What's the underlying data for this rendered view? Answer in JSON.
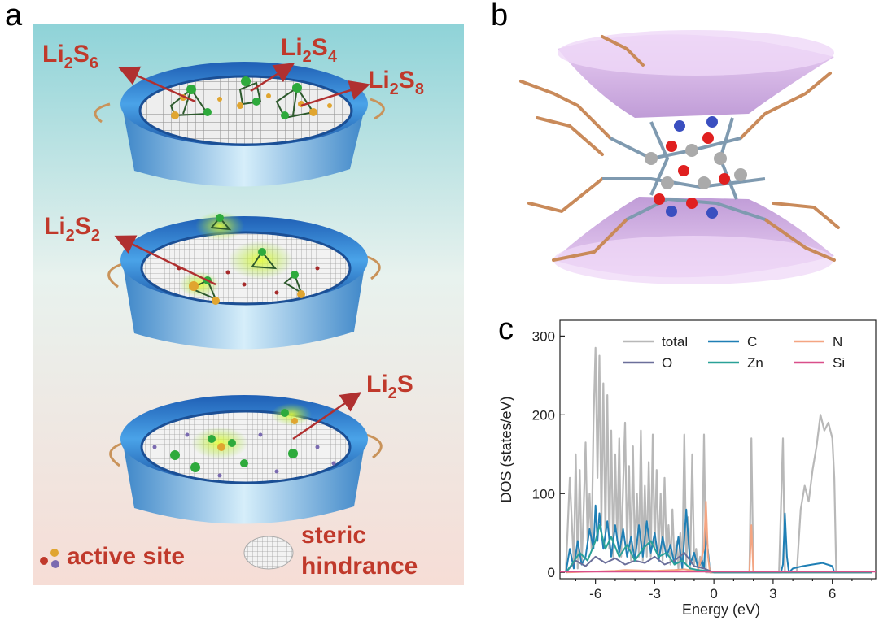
{
  "panels": {
    "a": "a",
    "b": "b",
    "c": "c"
  },
  "panel_a": {
    "species": [
      {
        "base": "Li",
        "sub1": "2",
        "mid": "S",
        "sub2": "6"
      },
      {
        "base": "Li",
        "sub1": "2",
        "mid": "S",
        "sub2": "4"
      },
      {
        "base": "Li",
        "sub1": "2",
        "mid": "S",
        "sub2": "8"
      },
      {
        "base": "Li",
        "sub1": "2",
        "mid": "S",
        "sub2": "2"
      },
      {
        "base": "Li",
        "sub1": "2",
        "mid": "S",
        "sub2": ""
      }
    ],
    "legend": {
      "active_site": "active site",
      "steric_line1": "steric",
      "steric_line2": "hindrance"
    },
    "colors": {
      "label_red": "#c0392b",
      "tray_blue": "#2f7fd0",
      "bg_top": "#8fd3d8",
      "bg_bottom": "#f6ddd6"
    }
  },
  "chart_data": {
    "type": "line",
    "xlabel": "Energy (eV)",
    "ylabel": "DOS (states/eV)",
    "xlim": [
      -7.8,
      8.2
    ],
    "ylim": [
      -8,
      320
    ],
    "xticks": [
      -6,
      -3,
      0,
      3,
      6
    ],
    "xtick_labels": [
      "-6",
      "-3",
      "0",
      "3",
      "6"
    ],
    "yticks": [
      0,
      100,
      200,
      300
    ],
    "ytick_labels": [
      "0",
      "100",
      "200",
      "300"
    ],
    "legend": [
      "total",
      "C",
      "N",
      "O",
      "Zn",
      "Si"
    ],
    "series": [
      {
        "name": "total",
        "color": "#b8b8b8",
        "x": [
          -7.5,
          -7.3,
          -7.1,
          -7.0,
          -6.9,
          -6.8,
          -6.7,
          -6.6,
          -6.5,
          -6.4,
          -6.3,
          -6.2,
          -6.1,
          -6.0,
          -5.9,
          -5.8,
          -5.7,
          -5.6,
          -5.5,
          -5.4,
          -5.3,
          -5.2,
          -5.1,
          -5.0,
          -4.9,
          -4.8,
          -4.7,
          -4.6,
          -4.5,
          -4.4,
          -4.3,
          -4.2,
          -4.1,
          -4.0,
          -3.9,
          -3.8,
          -3.7,
          -3.6,
          -3.5,
          -3.4,
          -3.3,
          -3.2,
          -3.1,
          -3.0,
          -2.9,
          -2.8,
          -2.7,
          -2.6,
          -2.5,
          -2.4,
          -2.3,
          -2.2,
          -2.1,
          -2.0,
          -1.9,
          -1.8,
          -1.7,
          -1.6,
          -1.5,
          -1.4,
          -1.3,
          -1.2,
          -1.1,
          -1.0,
          -0.9,
          -0.8,
          -0.7,
          -0.6,
          -0.5,
          -0.4,
          -0.3,
          -0.2,
          -0.1,
          0.0,
          0.2,
          0.5,
          1.0,
          1.5,
          1.8,
          1.9,
          2.0,
          2.1,
          2.3,
          2.8,
          3.3,
          3.5,
          3.6,
          3.7,
          3.8,
          4.0,
          4.2,
          4.4,
          4.6,
          4.8,
          5.0,
          5.2,
          5.4,
          5.6,
          5.8,
          6.0,
          6.1,
          6.2,
          6.4,
          7.0,
          8.0
        ],
        "y": [
          2,
          120,
          10,
          150,
          5,
          130,
          10,
          80,
          165,
          40,
          100,
          30,
          190,
          285,
          120,
          275,
          60,
          240,
          50,
          225,
          30,
          180,
          20,
          150,
          40,
          170,
          20,
          110,
          190,
          30,
          135,
          15,
          160,
          20,
          100,
          20,
          180,
          15,
          110,
          20,
          140,
          20,
          175,
          30,
          130,
          20,
          100,
          15,
          120,
          20,
          60,
          10,
          80,
          10,
          40,
          5,
          50,
          5,
          175,
          10,
          70,
          5,
          150,
          10,
          30,
          5,
          20,
          5,
          175,
          0,
          0,
          0,
          0,
          0,
          0,
          0,
          0,
          0,
          0,
          170,
          0,
          0,
          0,
          0,
          0,
          170,
          0,
          0,
          0,
          0,
          0,
          80,
          110,
          90,
          130,
          160,
          200,
          180,
          190,
          170,
          120,
          0,
          0,
          0,
          0
        ]
      },
      {
        "name": "C",
        "color": "#1f7fb5",
        "x": [
          -7.5,
          -7.3,
          -7.1,
          -6.9,
          -6.7,
          -6.5,
          -6.3,
          -6.1,
          -6.0,
          -5.9,
          -5.8,
          -5.6,
          -5.4,
          -5.2,
          -5.0,
          -4.8,
          -4.6,
          -4.4,
          -4.2,
          -4.0,
          -3.8,
          -3.6,
          -3.4,
          -3.2,
          -3.0,
          -2.8,
          -2.6,
          -2.4,
          -2.2,
          -2.0,
          -1.8,
          -1.6,
          -1.4,
          -1.2,
          -1.0,
          -0.8,
          -0.6,
          -0.5,
          -0.4,
          -0.2,
          0.0,
          1.0,
          1.8,
          1.9,
          2.0,
          3.4,
          3.5,
          3.6,
          3.7,
          3.8,
          4.0,
          4.5,
          5.0,
          5.5,
          6.0,
          6.1,
          6.2,
          8.0
        ],
        "y": [
          0,
          30,
          5,
          40,
          10,
          20,
          55,
          30,
          85,
          40,
          75,
          30,
          65,
          20,
          60,
          25,
          55,
          20,
          45,
          15,
          60,
          20,
          65,
          25,
          50,
          15,
          45,
          20,
          35,
          10,
          45,
          5,
          80,
          10,
          25,
          5,
          15,
          5,
          55,
          0,
          0,
          0,
          0,
          0,
          0,
          0,
          10,
          75,
          20,
          0,
          5,
          8,
          10,
          12,
          8,
          0,
          0,
          0
        ]
      },
      {
        "name": "N",
        "color": "#f4a582",
        "x": [
          -7.5,
          -5.0,
          -4.5,
          -3.0,
          -2.0,
          -1.5,
          -1.0,
          -0.8,
          -0.5,
          -0.4,
          -0.3,
          -0.2,
          -0.1,
          0.0,
          1.0,
          1.8,
          1.9,
          2.0,
          3.0,
          3.6,
          4.0,
          8.0
        ],
        "y": [
          0,
          2,
          3,
          2,
          3,
          4,
          2,
          3,
          30,
          90,
          20,
          0,
          0,
          0,
          0,
          0,
          60,
          0,
          0,
          0,
          0,
          0
        ]
      },
      {
        "name": "O",
        "color": "#6b6f9a",
        "x": [
          -7.5,
          -7.0,
          -6.5,
          -6.0,
          -5.5,
          -5.0,
          -4.5,
          -4.0,
          -3.5,
          -3.0,
          -2.5,
          -2.0,
          -1.5,
          -1.0,
          -0.5,
          0.0,
          8.0
        ],
        "y": [
          0,
          15,
          8,
          20,
          12,
          18,
          10,
          15,
          12,
          20,
          10,
          15,
          25,
          8,
          5,
          0,
          0
        ]
      },
      {
        "name": "Zn",
        "color": "#2aa198",
        "x": [
          -7.5,
          -7.2,
          -6.8,
          -6.4,
          -6.0,
          -5.8,
          -5.5,
          -5.2,
          -4.8,
          -4.4,
          -4.0,
          -3.6,
          -3.2,
          -2.8,
          -2.4,
          -2.0,
          -1.6,
          -1.2,
          -0.8,
          -0.4,
          0.0,
          8.0
        ],
        "y": [
          0,
          10,
          25,
          15,
          40,
          60,
          30,
          45,
          20,
          35,
          15,
          30,
          40,
          20,
          25,
          10,
          15,
          5,
          3,
          2,
          0,
          0
        ]
      },
      {
        "name": "Si",
        "color": "#d94f8a",
        "x": [
          -7.8,
          8.2
        ],
        "y": [
          1,
          1
        ]
      }
    ]
  }
}
